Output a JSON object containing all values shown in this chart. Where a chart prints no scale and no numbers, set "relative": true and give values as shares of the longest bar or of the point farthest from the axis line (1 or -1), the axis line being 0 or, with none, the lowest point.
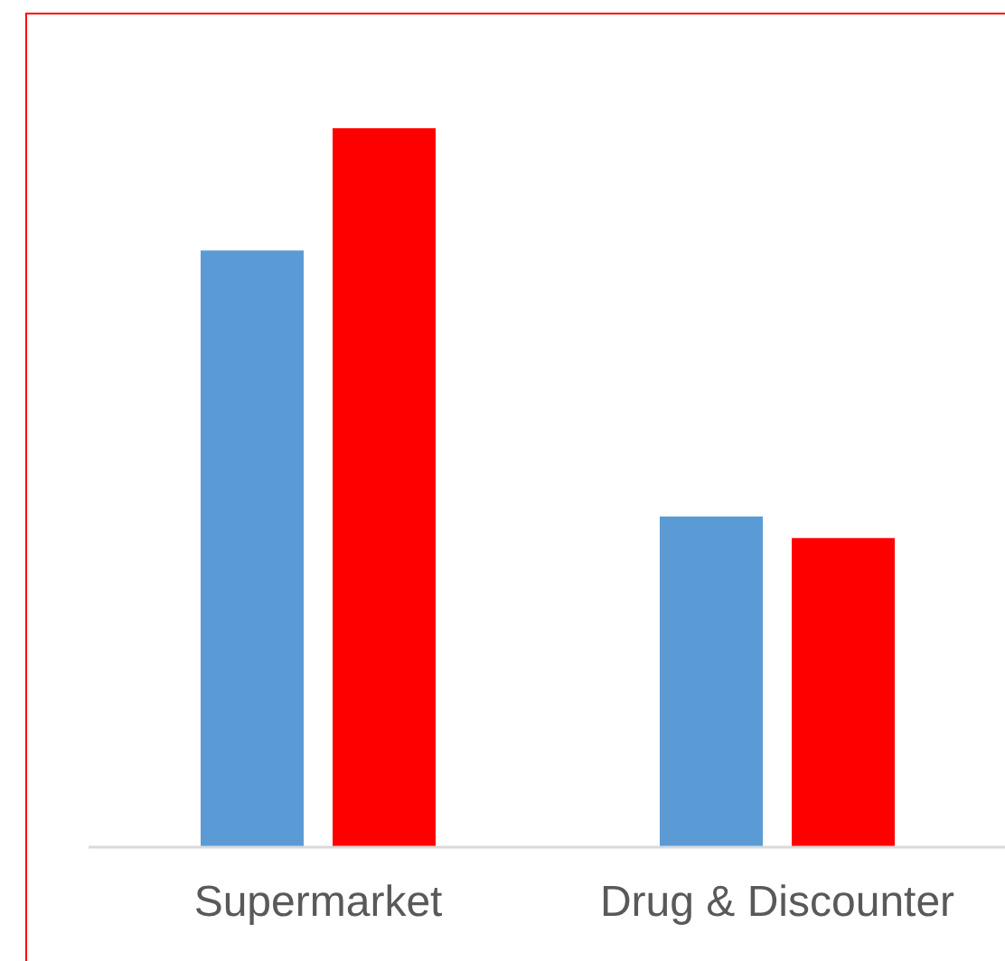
{
  "chart_data": {
    "type": "bar",
    "relative": true,
    "categories": [
      "Supermarket",
      "Drug & Discounter"
    ],
    "series": [
      {
        "color": "#5b9bd5",
        "values": [
          0.83,
          0.46
        ]
      },
      {
        "color": "#ff0000",
        "values": [
          1,
          0.43
        ]
      }
    ]
  }
}
